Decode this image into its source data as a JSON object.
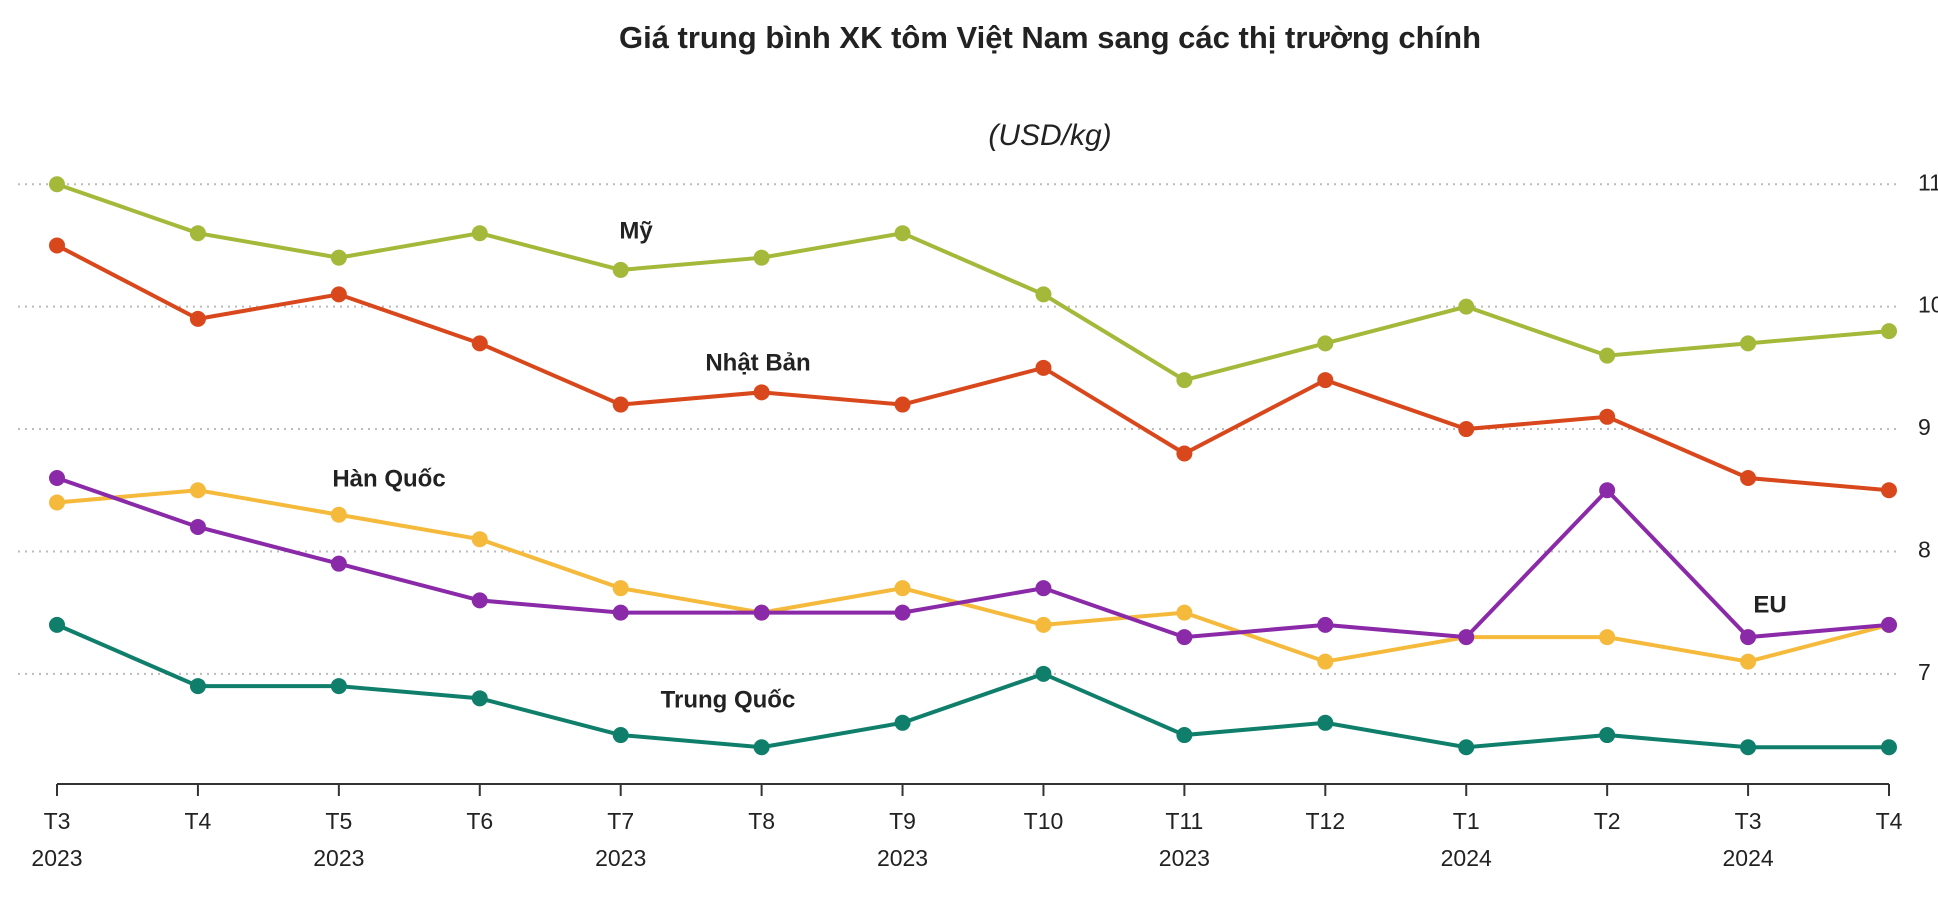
{
  "chart_data": {
    "type": "line",
    "title": "Giá trung bình XK tôm Việt Nam sang các thị trường chính",
    "subtitle": "(USD/kg)",
    "categories": [
      "T3",
      "T4",
      "T5",
      "T6",
      "T7",
      "T8",
      "T9",
      "T10",
      "T11",
      "T12",
      "T1",
      "T2",
      "T3",
      "T4"
    ],
    "years": [
      "2023",
      null,
      "2023",
      null,
      "2023",
      null,
      "2023",
      null,
      "2023",
      null,
      "2024",
      null,
      "2024",
      null
    ],
    "ylim": [
      6.1,
      11.1
    ],
    "yticks": [
      7,
      8,
      9,
      10,
      11
    ],
    "grid": true,
    "series": [
      {
        "name": "Mỹ",
        "color": "#a4b83a",
        "values": [
          11,
          10.6,
          10.4,
          10.6,
          10.3,
          10.4,
          10.6,
          10.1,
          9.4,
          9.7,
          10.0,
          9.6,
          9.7,
          9.8
        ]
      },
      {
        "name": "Nhật Bản",
        "color": "#d9481c",
        "values": [
          10.5,
          9.9,
          10.1,
          9.7,
          9.2,
          9.3,
          9.2,
          9.5,
          8.8,
          9.4,
          9.0,
          9.1,
          8.6,
          8.5
        ]
      },
      {
        "name": "Hàn Quốc",
        "color": "#f5b93c",
        "values": [
          8.4,
          8.5,
          8.3,
          8.1,
          7.7,
          7.5,
          7.7,
          7.4,
          7.5,
          7.1,
          7.3,
          7.3,
          7.1,
          7.4
        ]
      },
      {
        "name": "EU",
        "color": "#8a2aa8",
        "values": [
          8.6,
          8.2,
          7.9,
          7.6,
          7.5,
          7.5,
          7.5,
          7.7,
          7.3,
          7.4,
          7.3,
          8.5,
          7.3,
          7.4
        ]
      },
      {
        "name": "Trung Quốc",
        "color": "#0f7f6b",
        "values": [
          7.4,
          6.9,
          6.9,
          6.8,
          6.5,
          6.4,
          6.6,
          7.0,
          6.5,
          6.6,
          6.4,
          6.5,
          6.4,
          6.4
        ]
      }
    ]
  }
}
